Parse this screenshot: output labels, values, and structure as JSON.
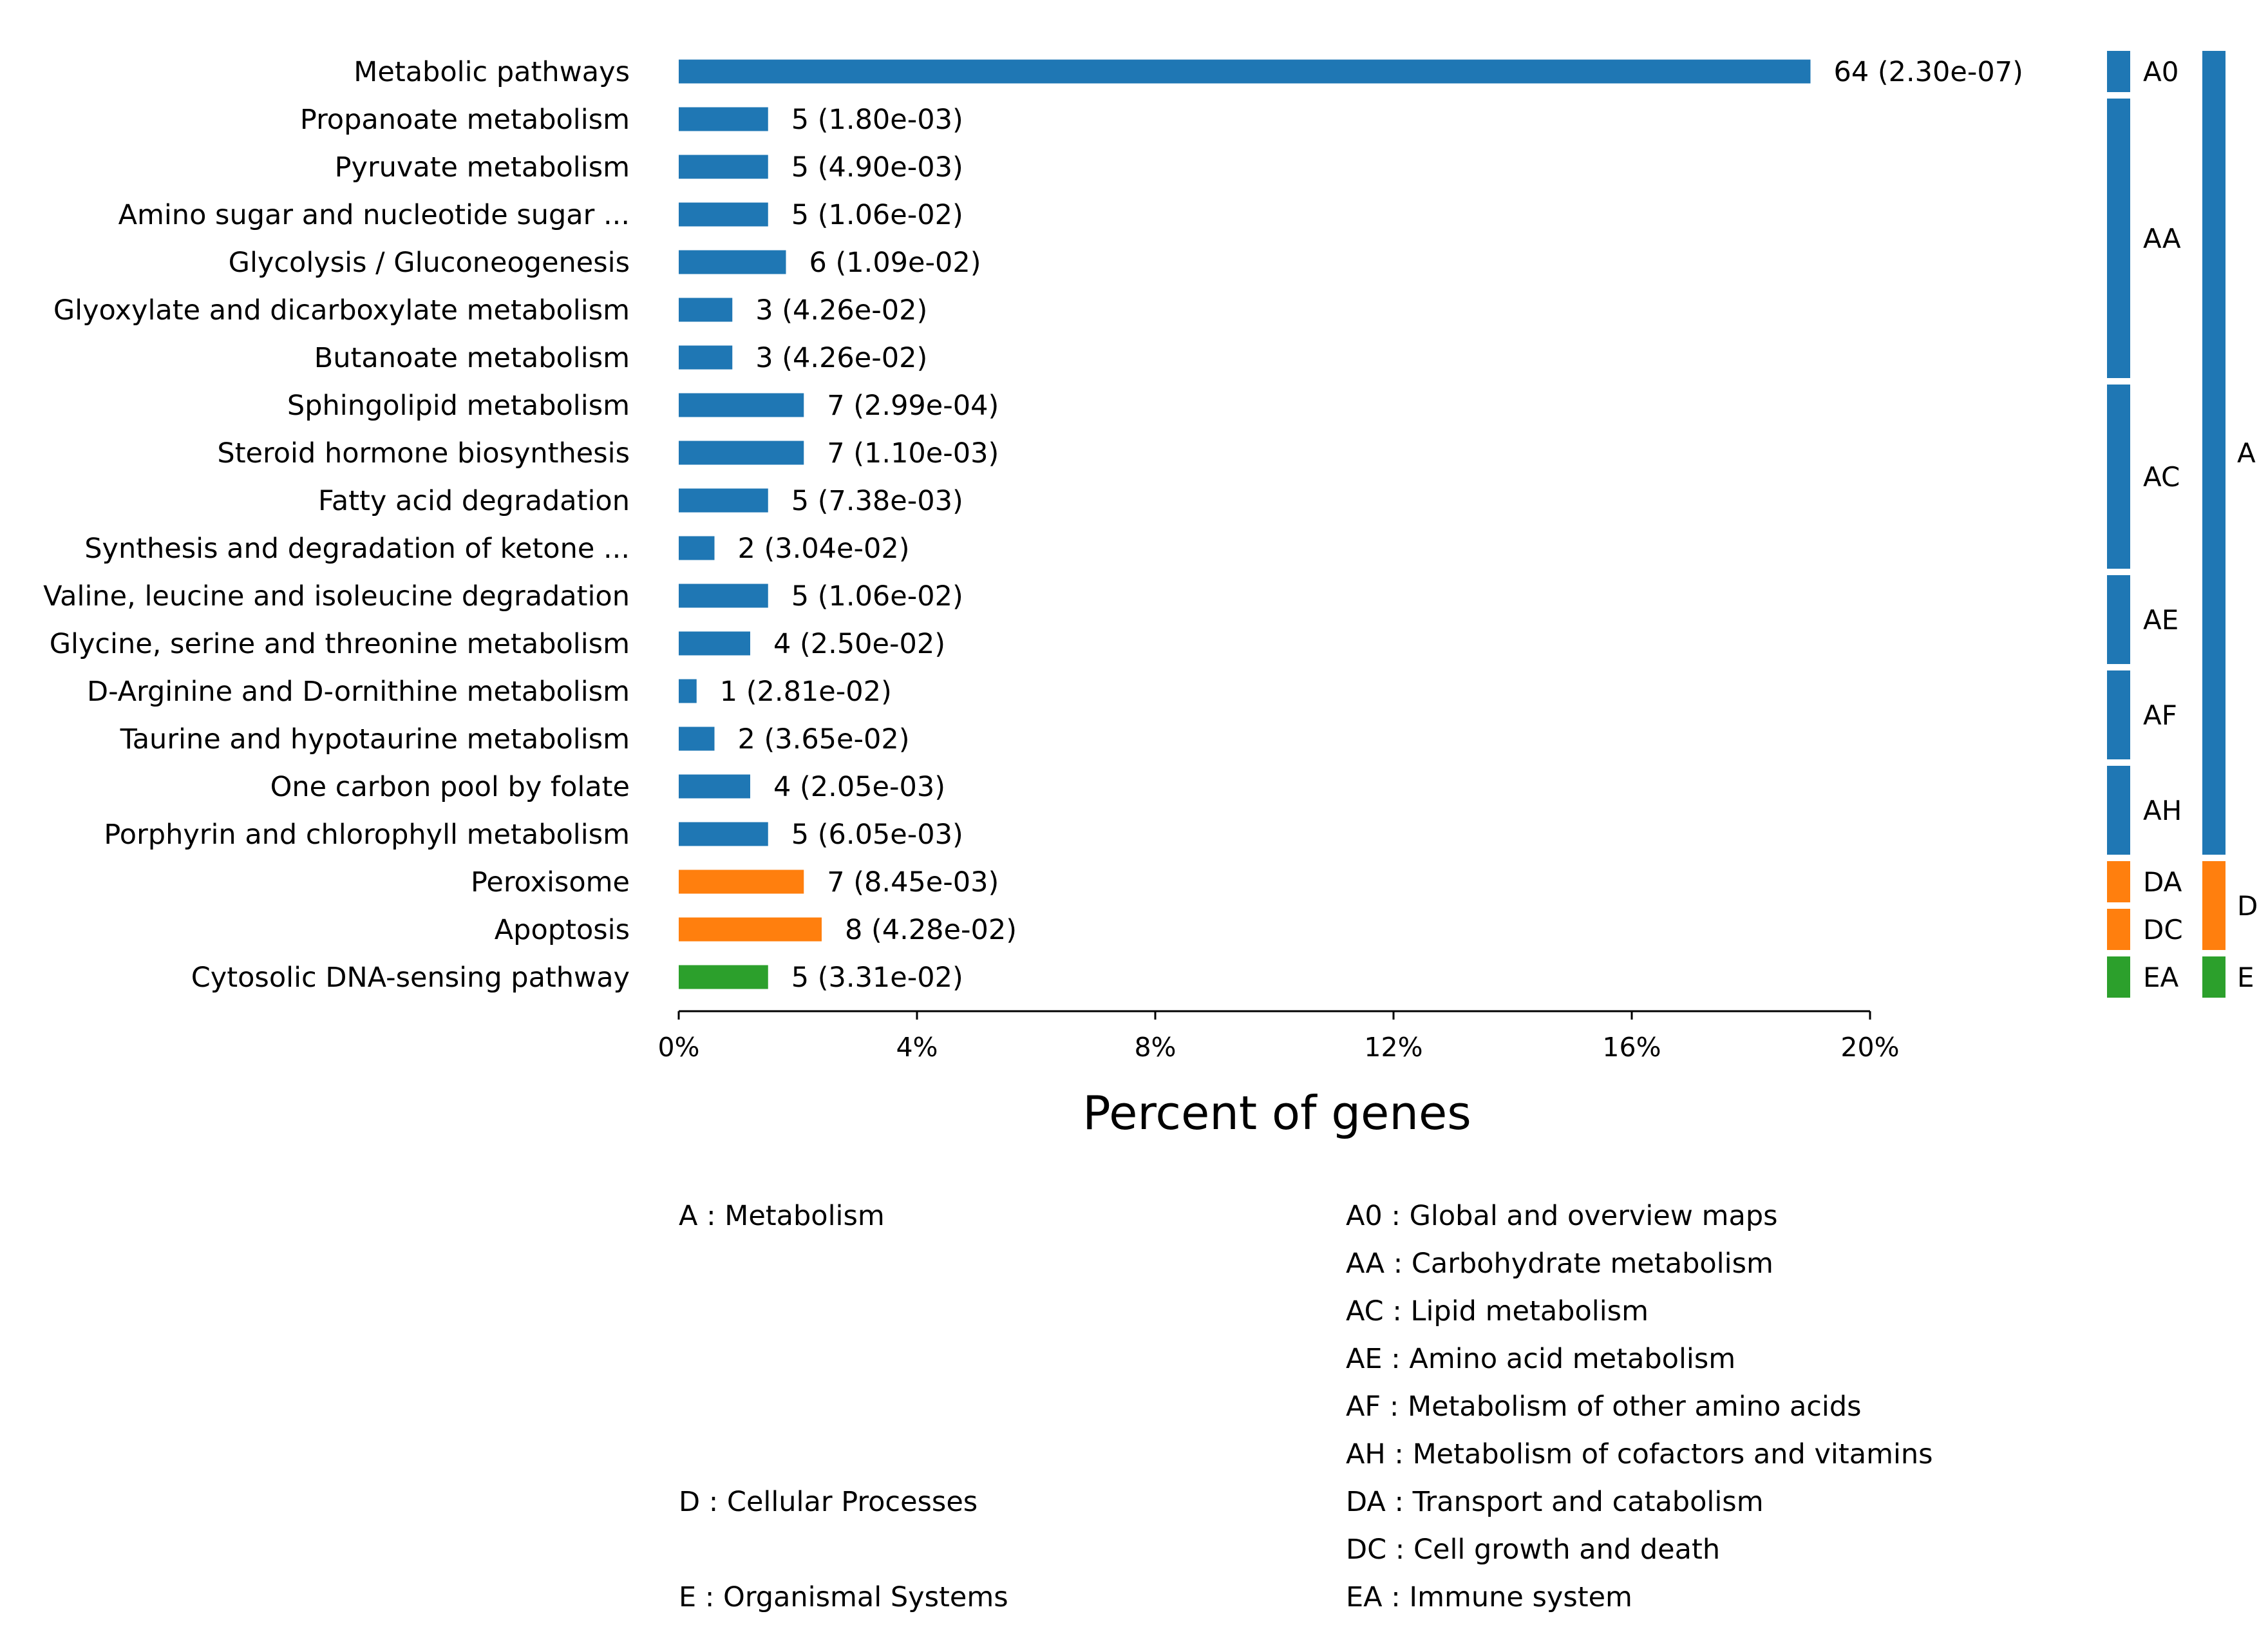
{
  "chart_data": {
    "type": "bar",
    "orientation": "horizontal",
    "xlabel": "Percent of genes",
    "xlim": [
      0,
      20
    ],
    "xticks": [
      0,
      4,
      8,
      12,
      16,
      20
    ],
    "xtick_labels": [
      "0%",
      "4%",
      "8%",
      "12%",
      "16%",
      "20%"
    ],
    "colors": {
      "A": "#1f77b4",
      "D": "#ff7f0e",
      "E": "#2ca02c"
    },
    "categories": [
      "Metabolic pathways",
      "Propanoate metabolism",
      "Pyruvate metabolism",
      "Amino sugar and nucleotide sugar ...",
      "Glycolysis / Gluconeogenesis",
      "Glyoxylate and dicarboxylate metabolism",
      "Butanoate metabolism",
      "Sphingolipid metabolism",
      "Steroid hormone biosynthesis",
      "Fatty acid degradation",
      "Synthesis and degradation of ketone ...",
      "Valine, leucine and isoleucine degradation",
      "Glycine, serine and threonine metabolism",
      "D-Arginine and D-ornithine metabolism",
      "Taurine and hypotaurine metabolism",
      "One carbon pool by folate",
      "Porphyrin and chlorophyll metabolism",
      "Peroxisome",
      "Apoptosis",
      "Cytosolic DNA-sensing pathway"
    ],
    "values": [
      19.0,
      1.5,
      1.5,
      1.5,
      1.8,
      0.9,
      0.9,
      2.1,
      2.1,
      1.5,
      0.6,
      1.5,
      1.2,
      0.3,
      0.6,
      1.2,
      1.5,
      2.1,
      2.4,
      1.5
    ],
    "bar_groups": [
      "A",
      "A",
      "A",
      "A",
      "A",
      "A",
      "A",
      "A",
      "A",
      "A",
      "A",
      "A",
      "A",
      "A",
      "A",
      "A",
      "A",
      "D",
      "D",
      "E"
    ],
    "value_labels": [
      "64 (2.30e-07)",
      "5 (1.80e-03)",
      "5 (4.90e-03)",
      "5 (1.06e-02)",
      "6 (1.09e-02)",
      "3 (4.26e-02)",
      "3 (4.26e-02)",
      "7 (2.99e-04)",
      "7 (1.10e-03)",
      "5 (7.38e-03)",
      "2 (3.04e-02)",
      "5 (1.06e-02)",
      "4 (2.50e-02)",
      "1 (2.81e-02)",
      "2 (3.65e-02)",
      "4 (2.05e-03)",
      "5 (6.05e-03)",
      "7 (8.45e-03)",
      "8 (4.28e-02)",
      "5 (3.31e-02)"
    ],
    "subgroups": [
      {
        "code": "A0",
        "group": "A",
        "first": 0,
        "last": 0
      },
      {
        "code": "AA",
        "group": "A",
        "first": 1,
        "last": 6
      },
      {
        "code": "AC",
        "group": "A",
        "first": 7,
        "last": 10
      },
      {
        "code": "AE",
        "group": "A",
        "first": 11,
        "last": 12
      },
      {
        "code": "AF",
        "group": "A",
        "first": 13,
        "last": 14
      },
      {
        "code": "AH",
        "group": "A",
        "first": 15,
        "last": 16
      },
      {
        "code": "DA",
        "group": "D",
        "first": 17,
        "last": 17
      },
      {
        "code": "DC",
        "group": "D",
        "first": 18,
        "last": 18
      },
      {
        "code": "EA",
        "group": "E",
        "first": 19,
        "last": 19
      }
    ],
    "groups": [
      {
        "code": "A",
        "first": 0,
        "last": 16
      },
      {
        "code": "D",
        "first": 17,
        "last": 18
      },
      {
        "code": "E",
        "first": 19,
        "last": 19
      }
    ],
    "legend_groups": [
      {
        "text": "A : Metabolism",
        "row": 0
      },
      {
        "text": "D : Cellular Processes",
        "row": 6
      },
      {
        "text": "E : Organismal Systems",
        "row": 8
      }
    ],
    "legend_subgroups": [
      "A0 : Global and overview maps",
      "AA : Carbohydrate metabolism",
      "AC : Lipid metabolism",
      "AE : Amino acid metabolism",
      "AF : Metabolism of other amino acids",
      "AH : Metabolism of cofactors and vitamins",
      "DA : Transport and catabolism",
      "DC : Cell growth and death",
      "EA : Immune system"
    ]
  }
}
